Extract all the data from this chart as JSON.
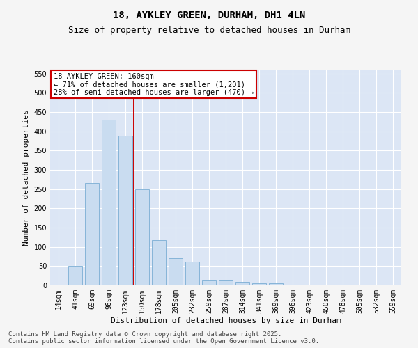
{
  "title": "18, AYKLEY GREEN, DURHAM, DH1 4LN",
  "subtitle": "Size of property relative to detached houses in Durham",
  "xlabel": "Distribution of detached houses by size in Durham",
  "ylabel": "Number of detached properties",
  "categories": [
    "14sqm",
    "41sqm",
    "69sqm",
    "96sqm",
    "123sqm",
    "150sqm",
    "178sqm",
    "205sqm",
    "232sqm",
    "259sqm",
    "287sqm",
    "314sqm",
    "341sqm",
    "369sqm",
    "396sqm",
    "423sqm",
    "450sqm",
    "478sqm",
    "505sqm",
    "532sqm",
    "559sqm"
  ],
  "values": [
    2,
    50,
    265,
    430,
    388,
    250,
    117,
    70,
    62,
    12,
    12,
    9,
    6,
    5,
    1,
    0,
    0,
    2,
    0,
    1,
    0
  ],
  "bar_color": "#c9dcf0",
  "bar_edge_color": "#7aadd4",
  "plot_bg_color": "#dce6f5",
  "fig_bg_color": "#f5f5f5",
  "grid_color": "#ffffff",
  "annotation_box_color": "#ffffff",
  "annotation_box_edge": "#cc0000",
  "vline_color": "#cc0000",
  "vline_x": 4.5,
  "annotation_title": "18 AYKLEY GREEN: 160sqm",
  "annotation_line1": "← 71% of detached houses are smaller (1,201)",
  "annotation_line2": "28% of semi-detached houses are larger (470) →",
  "ylim": [
    0,
    560
  ],
  "yticks": [
    0,
    50,
    100,
    150,
    200,
    250,
    300,
    350,
    400,
    450,
    500,
    550
  ],
  "footer_line1": "Contains HM Land Registry data © Crown copyright and database right 2025.",
  "footer_line2": "Contains public sector information licensed under the Open Government Licence v3.0.",
  "title_fontsize": 10,
  "subtitle_fontsize": 9,
  "axis_label_fontsize": 8,
  "tick_fontsize": 7,
  "annotation_fontsize": 7.5,
  "footer_fontsize": 6.5
}
